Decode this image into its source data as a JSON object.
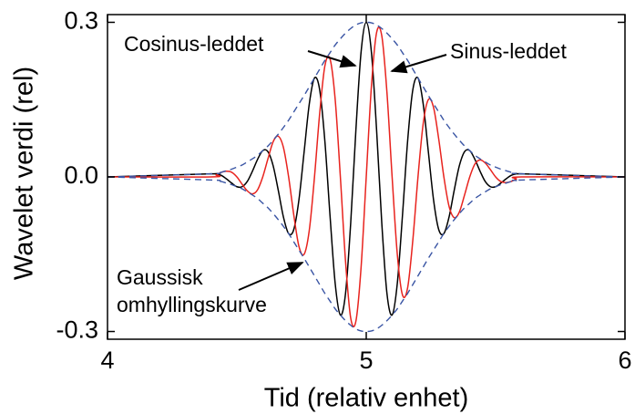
{
  "chart_data": {
    "type": "line",
    "xlabel": "Tid (relativ enhet)",
    "ylabel": "Wavelet verdi (rel)",
    "annotations": [
      "Cosinus-leddet",
      "Sinus-leddet",
      "Gaussisk",
      "omhyllingskurve"
    ],
    "xlim": [
      4,
      6
    ],
    "xticks": [
      4,
      5,
      6
    ],
    "ylim": [
      -0.315,
      0.315
    ],
    "yticks": [
      -0.3,
      {
        "value": 0,
        "label": "0.0"
      },
      0.3
    ],
    "x": [
      4,
      4.4,
      4.42,
      4.44,
      4.46,
      4.48,
      4.5,
      4.52,
      4.54,
      4.56,
      4.58,
      4.6,
      4.62,
      4.64,
      4.66,
      4.68,
      4.7,
      4.72,
      4.74,
      4.76,
      4.78,
      4.8,
      4.82,
      4.84,
      4.86,
      4.88,
      4.9,
      4.92,
      4.94,
      4.96,
      4.98,
      5,
      5.02,
      5.04,
      5.06,
      5.08,
      5.1,
      5.12,
      5.14,
      5.16,
      5.18,
      5.2,
      5.22,
      5.24,
      5.26,
      5.28,
      5.3,
      5.32,
      5.34,
      5.36,
      5.38,
      5.4,
      5.42,
      5.44,
      5.46,
      5.48,
      5.5,
      5.52,
      5.54,
      5.56,
      5.58,
      5.6,
      6
    ],
    "series": [
      {
        "color": "#000000",
        "dash": false,
        "values": [
          0,
          0.006,
          0.006,
          0.003,
          -0.004,
          -0.012,
          -0.019,
          -0.019,
          -0.009,
          0.011,
          0.034,
          0.051,
          0.049,
          0.022,
          -0.026,
          -0.078,
          -0.11,
          -0.102,
          -0.044,
          0.049,
          0.142,
          0.192,
          0.169,
          0.07,
          -0.075,
          -0.207,
          -0.268,
          -0.226,
          -0.089,
          0.091,
          0.242,
          0.3,
          0.242,
          0.091,
          -0.089,
          -0.226,
          -0.268,
          -0.207,
          -0.075,
          0.07,
          0.169,
          0.192,
          0.142,
          0.049,
          -0.044,
          -0.102,
          -0.11,
          -0.078,
          -0.026,
          0.022,
          0.049,
          0.051,
          0.034,
          0.011,
          -0.009,
          -0.019,
          -0.019,
          -0.012,
          -0.004,
          0.003,
          0.006,
          0.006,
          0
        ]
      },
      {
        "color": "#e8231e",
        "dash": false,
        "values": [
          0,
          0,
          0.004,
          0.009,
          0.011,
          0.009,
          0,
          -0.014,
          -0.027,
          -0.033,
          -0.025,
          0,
          0.035,
          0.068,
          0.079,
          0.057,
          0,
          -0.074,
          -0.135,
          -0.15,
          -0.103,
          0,
          0.123,
          0.215,
          0.229,
          0.15,
          0,
          -0.164,
          -0.274,
          -0.28,
          -0.176,
          0,
          0.176,
          0.28,
          0.274,
          0.164,
          0,
          -0.15,
          -0.229,
          -0.215,
          -0.123,
          0,
          0.103,
          0.15,
          0.135,
          0.074,
          0,
          -0.057,
          -0.079,
          -0.068,
          -0.035,
          0,
          0.025,
          0.033,
          0.027,
          0.014,
          0,
          -0.009,
          -0.011,
          -0.009,
          -0.004,
          0,
          0
        ]
      },
      {
        "color": "#3a55a4",
        "dash": true,
        "values": [
          0,
          0.006,
          0.007,
          0.009,
          0.012,
          0.015,
          0.019,
          0.023,
          0.029,
          0.035,
          0.042,
          0.051,
          0.06,
          0.071,
          0.083,
          0.096,
          0.11,
          0.126,
          0.142,
          0.158,
          0.175,
          0.192,
          0.209,
          0.226,
          0.241,
          0.256,
          0.268,
          0.279,
          0.288,
          0.295,
          0.299,
          0.3,
          0.299,
          0.295,
          0.288,
          0.279,
          0.268,
          0.256,
          0.241,
          0.226,
          0.209,
          0.192,
          0.175,
          0.158,
          0.142,
          0.126,
          0.11,
          0.096,
          0.083,
          0.071,
          0.06,
          0.051,
          0.042,
          0.035,
          0.029,
          0.023,
          0.019,
          0.015,
          0.012,
          0.009,
          0.007,
          0.006,
          0
        ]
      },
      {
        "color": "#3a55a4",
        "dash": true,
        "values": [
          0,
          -0.006,
          -0.007,
          -0.009,
          -0.012,
          -0.015,
          -0.019,
          -0.023,
          -0.029,
          -0.035,
          -0.042,
          -0.051,
          -0.06,
          -0.071,
          -0.083,
          -0.096,
          -0.11,
          -0.126,
          -0.142,
          -0.158,
          -0.175,
          -0.192,
          -0.209,
          -0.226,
          -0.241,
          -0.256,
          -0.268,
          -0.279,
          -0.288,
          -0.295,
          -0.299,
          -0.3,
          -0.299,
          -0.295,
          -0.288,
          -0.279,
          -0.268,
          -0.256,
          -0.241,
          -0.226,
          -0.209,
          -0.192,
          -0.175,
          -0.158,
          -0.142,
          -0.126,
          -0.11,
          -0.096,
          -0.083,
          -0.071,
          -0.06,
          -0.051,
          -0.042,
          -0.035,
          -0.029,
          -0.023,
          -0.019,
          -0.015,
          -0.012,
          -0.009,
          -0.007,
          -0.006,
          0
        ]
      }
    ]
  }
}
